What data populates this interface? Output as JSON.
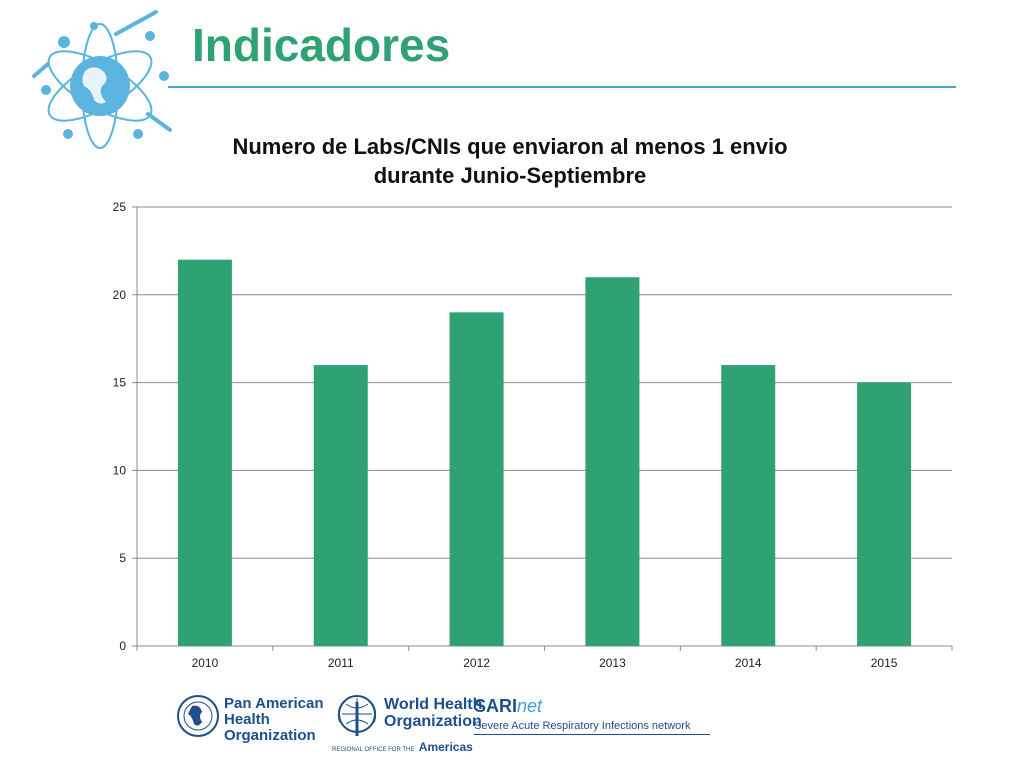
{
  "slide": {
    "title": "Indicadores"
  },
  "footer": {
    "paho": {
      "line1": "Pan American",
      "line2": "Health",
      "line3": "Organization"
    },
    "who": {
      "line1": "World Health",
      "line2": "Organization",
      "sub_prefix": "REGIONAL OFFICE FOR THE",
      "sub_region": "Americas"
    },
    "sari": {
      "name_bold": "SARI",
      "name_italic": "net",
      "tagline": "Severe Acute Respiratory Infections network"
    }
  },
  "colors": {
    "bar": "#2ea273",
    "title": "#2ea273",
    "rule": "#43a9d1",
    "logo": "#5bb4de",
    "grid": "#8c8c8c"
  },
  "icons": {
    "top_logo": "globe-network-logo",
    "paho_logo": "paho-emblem",
    "who_logo": "who-emblem"
  },
  "chart_data": {
    "type": "bar",
    "title_line1": "Numero de Labs/CNIs que enviaron al menos 1 envio",
    "title_line2": "durante Junio-Septiembre",
    "categories": [
      "2010",
      "2011",
      "2012",
      "2013",
      "2014",
      "2015"
    ],
    "values": [
      22,
      16,
      19,
      21,
      16,
      15
    ],
    "yticks": [
      "0",
      "5",
      "10",
      "15",
      "20",
      "25"
    ],
    "ylim": [
      0,
      25
    ],
    "grid": true,
    "legend": "none"
  }
}
